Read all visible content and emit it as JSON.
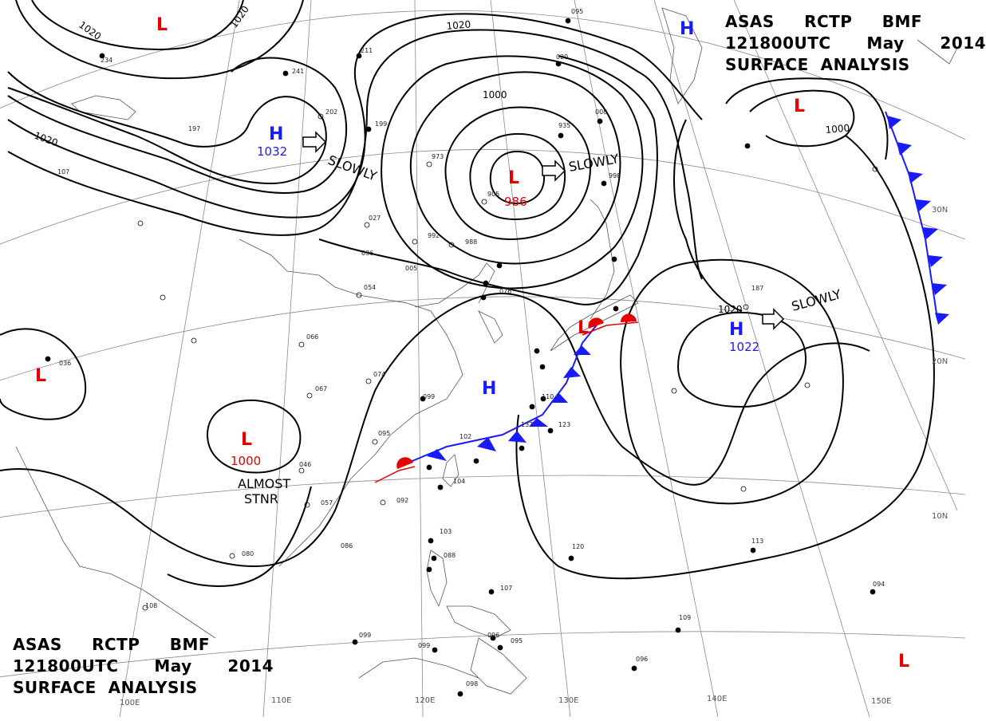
{
  "header": {
    "line1": "ASAS     RCTP     BMF",
    "line2": "121800UTC      May      2014",
    "line3": "SURFACE  ANALYSIS"
  },
  "colors": {
    "high": "#1a1aff",
    "low": "#e60000",
    "isobar": "#000000",
    "cold_front": "#1a1aff",
    "warm_front": "#e60000",
    "grid": "#777777"
  },
  "pressure_centers": [
    {
      "type": "H",
      "value": "1032"
    },
    {
      "type": "L",
      "value": "986"
    },
    {
      "type": "H",
      "value": "1022"
    },
    {
      "type": "L",
      "value": "1000"
    },
    {
      "type": "H",
      "value": ""
    },
    {
      "type": "H",
      "value": ""
    },
    {
      "type": "L",
      "value": ""
    },
    {
      "type": "L",
      "value": ""
    },
    {
      "type": "L",
      "value": ""
    },
    {
      "type": "L",
      "value": ""
    },
    {
      "type": "L",
      "value": ""
    }
  ],
  "movement_labels": [
    "SLOWLY",
    "SLOWLY",
    "SLOWLY"
  ],
  "stationary_note": [
    "ALMOST",
    "STNR"
  ],
  "isobar_labels": [
    "1020",
    "1020",
    "1020",
    "1020",
    "1000",
    "1000",
    "1020"
  ],
  "longitude_labels": [
    "100E",
    "110E",
    "120E",
    "130E",
    "140E",
    "150E"
  ],
  "latitude_labels": [
    "30N",
    "20N",
    "10N"
  ],
  "station_numbers": [
    "036",
    "197",
    "107",
    "234",
    "211",
    "241",
    "202",
    "199",
    "095",
    "020",
    "935",
    "008",
    "998",
    "973",
    "905",
    "027",
    "992",
    "988",
    "036",
    "005",
    "054",
    "066",
    "074",
    "067",
    "099",
    "095",
    "102",
    "104",
    "092",
    "046",
    "057",
    "086",
    "080",
    "108",
    "099",
    "099",
    "098",
    "103",
    "088",
    "107",
    "096",
    "095",
    "076",
    "110",
    "137",
    "123",
    "187",
    "113",
    "094",
    "109",
    "096",
    "120"
  ]
}
